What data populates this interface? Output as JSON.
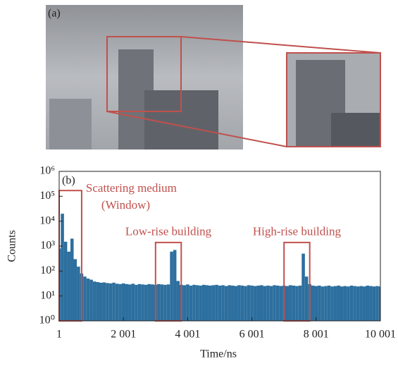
{
  "image_panel": {
    "label": "(a)"
  },
  "chart_data": {
    "type": "bar",
    "panel_label": "(b)",
    "x_label": "Time/ns",
    "y_label": "Counts",
    "log_y": true,
    "color": "#2d6f9e",
    "xlim": [
      1,
      10001
    ],
    "xticks": [
      1,
      {
        "value": 2001,
        "label": "2 001"
      },
      {
        "value": 4001,
        "label": "4 001"
      },
      {
        "value": 6001,
        "label": "6 001"
      },
      {
        "value": 8001,
        "label": "8 001"
      },
      {
        "value": 10001,
        "label": "10 001"
      }
    ],
    "ylim": [
      1,
      1000000
    ],
    "yticks": [
      {
        "value": 1,
        "label": "10⁰"
      },
      {
        "value": 10,
        "label": "10¹"
      },
      {
        "value": 100,
        "label": "10²"
      },
      {
        "value": 1000,
        "label": "10³"
      },
      {
        "value": 10000,
        "label": "10⁴"
      },
      {
        "value": 100000,
        "label": "10⁵"
      },
      {
        "value": 1000000,
        "label": "10⁶"
      }
    ],
    "x": [
      1,
      101,
      201,
      301,
      401,
      501,
      601,
      701,
      801,
      901,
      1001,
      1101,
      1201,
      1301,
      1401,
      1501,
      1601,
      1701,
      1801,
      1901,
      2001,
      2101,
      2201,
      2301,
      2401,
      2501,
      2601,
      2701,
      2801,
      2901,
      3001,
      3101,
      3201,
      3301,
      3401,
      3501,
      3601,
      3701,
      3801,
      3901,
      4001,
      4101,
      4201,
      4301,
      4401,
      4501,
      4601,
      4701,
      4801,
      4901,
      5001,
      5101,
      5201,
      5301,
      5401,
      5501,
      5601,
      5701,
      5801,
      5901,
      6001,
      6101,
      6201,
      6301,
      6401,
      6501,
      6601,
      6701,
      6801,
      6901,
      7001,
      7101,
      7201,
      7301,
      7401,
      7501,
      7601,
      7701,
      7801,
      7901,
      8001,
      8101,
      8201,
      8301,
      8401,
      8501,
      8601,
      8701,
      8801,
      8901,
      9001,
      9101,
      9201,
      9301,
      9401,
      9501,
      9601,
      9701,
      9801,
      9901,
      10001
    ],
    "values": [
      800,
      20000,
      1500,
      600,
      2000,
      300,
      150,
      80,
      60,
      50,
      45,
      38,
      36,
      34,
      35,
      33,
      32,
      34,
      31,
      30,
      32,
      30,
      29,
      31,
      28,
      30,
      29,
      28,
      30,
      29,
      28,
      30,
      29,
      28,
      29,
      600,
      700,
      40,
      28,
      27,
      29,
      26,
      28,
      27,
      26,
      28,
      27,
      26,
      27,
      28,
      26,
      27,
      25,
      27,
      26,
      25,
      27,
      26,
      25,
      27,
      26,
      25,
      26,
      27,
      25,
      26,
      25,
      27,
      26,
      25,
      26,
      25,
      27,
      26,
      25,
      26,
      500,
      60,
      30,
      26,
      25,
      26,
      24,
      25,
      26,
      24,
      25,
      26,
      24,
      25,
      24,
      26,
      25,
      24,
      25,
      24,
      26,
      25,
      24,
      25,
      24
    ],
    "annotations": [
      {
        "text": [
          "Scattering medium",
          "(Window)"
        ],
        "xrange": [
          1,
          701
        ],
        "ytop": 170000,
        "color": "#c0504d"
      },
      {
        "text": [
          "Low-rise building"
        ],
        "xrange": [
          3001,
          3801
        ],
        "ytop": 1400,
        "color": "#c0504d"
      },
      {
        "text": [
          "High-rise building"
        ],
        "xrange": [
          7001,
          7801
        ],
        "ytop": 1400,
        "color": "#c0504d"
      }
    ]
  }
}
